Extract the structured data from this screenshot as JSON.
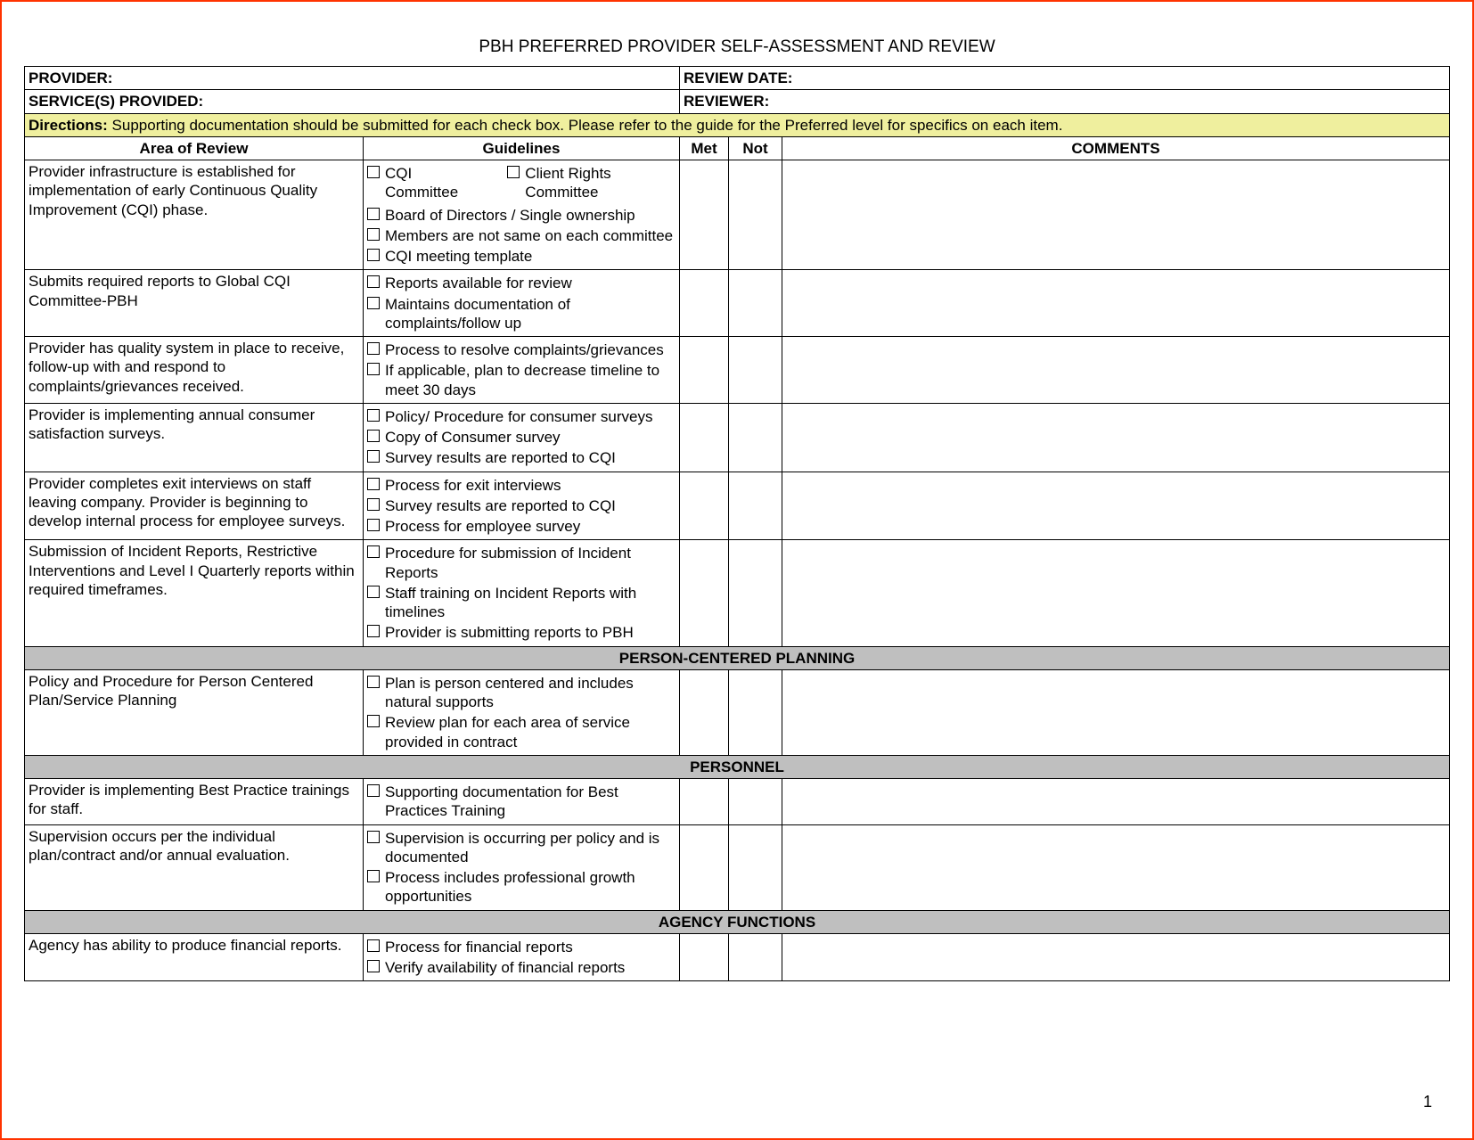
{
  "title": "PBH PREFERRED PROVIDER SELF-ASSESSMENT AND REVIEW",
  "header": {
    "provider_label": "PROVIDER:",
    "review_date_label": "REVIEW DATE:",
    "services_label": "SERVICE(S) PROVIDED:",
    "reviewer_label": "REVIEWER:"
  },
  "directions": {
    "label": "Directions:",
    "text": "Supporting documentation should be submitted for each check box.  Please refer to the guide for the Preferred level for specifics on each item."
  },
  "columns": {
    "area": "Area of Review",
    "guidelines": "Guidelines",
    "met": "Met",
    "not": "Not",
    "comments": "COMMENTS"
  },
  "rows": [
    {
      "area": "Provider infrastructure is established for implementation of early Continuous Quality Improvement (CQI)  phase.",
      "guidelines_pair": [
        {
          "a": "CQI Committee",
          "b": "Client Rights Committee"
        }
      ],
      "guidelines": [
        "Board of Directors / Single ownership",
        "Members are not same on each committee",
        "CQI meeting template"
      ]
    },
    {
      "area": "Submits required reports to Global CQI Committee-PBH",
      "guidelines": [
        "Reports available for review",
        "Maintains documentation of complaints/follow up"
      ]
    },
    {
      "area": "Provider has quality system in place to receive, follow-up with and respond to complaints/grievances received.",
      "guidelines": [
        "Process to resolve complaints/grievances",
        "If applicable, plan to decrease timeline to meet 30 days"
      ]
    },
    {
      "area": "Provider is implementing annual consumer satisfaction surveys.",
      "guidelines": [
        "Policy/ Procedure for consumer surveys",
        "Copy of Consumer survey",
        "Survey results are reported to CQI"
      ]
    },
    {
      "area": "Provider completes exit interviews on staff leaving company.  Provider is beginning to develop internal process for employee surveys.",
      "guidelines": [
        "Process for exit interviews",
        "Survey results are reported to CQI",
        "Process for employee survey"
      ]
    },
    {
      "area": "Submission of Incident Reports, Restrictive Interventions and Level I Quarterly reports within required timeframes.",
      "guidelines": [
        "Procedure for submission of Incident Reports",
        "Staff training on Incident Reports with timelines",
        "Provider is submitting reports to PBH"
      ]
    }
  ],
  "section1": "PERSON-CENTERED PLANNING",
  "rows2": [
    {
      "area": "Policy and Procedure for Person Centered Plan/Service Planning",
      "guidelines": [
        "Plan is person centered and  includes natural supports",
        "Review plan for each area of service provided in contract"
      ]
    }
  ],
  "section2": "PERSONNEL",
  "rows3": [
    {
      "area": "Provider is implementing Best Practice trainings for staff.",
      "guidelines": [
        "Supporting documentation for Best Practices Training"
      ]
    },
    {
      "area": "Supervision occurs per the individual plan/contract and/or  annual evaluation.",
      "guidelines": [
        "Supervision is occurring per policy and is documented",
        "Process includes professional growth opportunities"
      ]
    }
  ],
  "section3": "AGENCY FUNCTIONS",
  "rows4": [
    {
      "area": "Agency has ability to produce financial reports.",
      "guidelines": [
        "Process for financial reports",
        "Verify availability of financial reports"
      ]
    }
  ],
  "page_number": "1",
  "colors": {
    "border": "#ff3300",
    "directions_bg": "#efef9e",
    "section_bg": "#bfbfbf"
  }
}
